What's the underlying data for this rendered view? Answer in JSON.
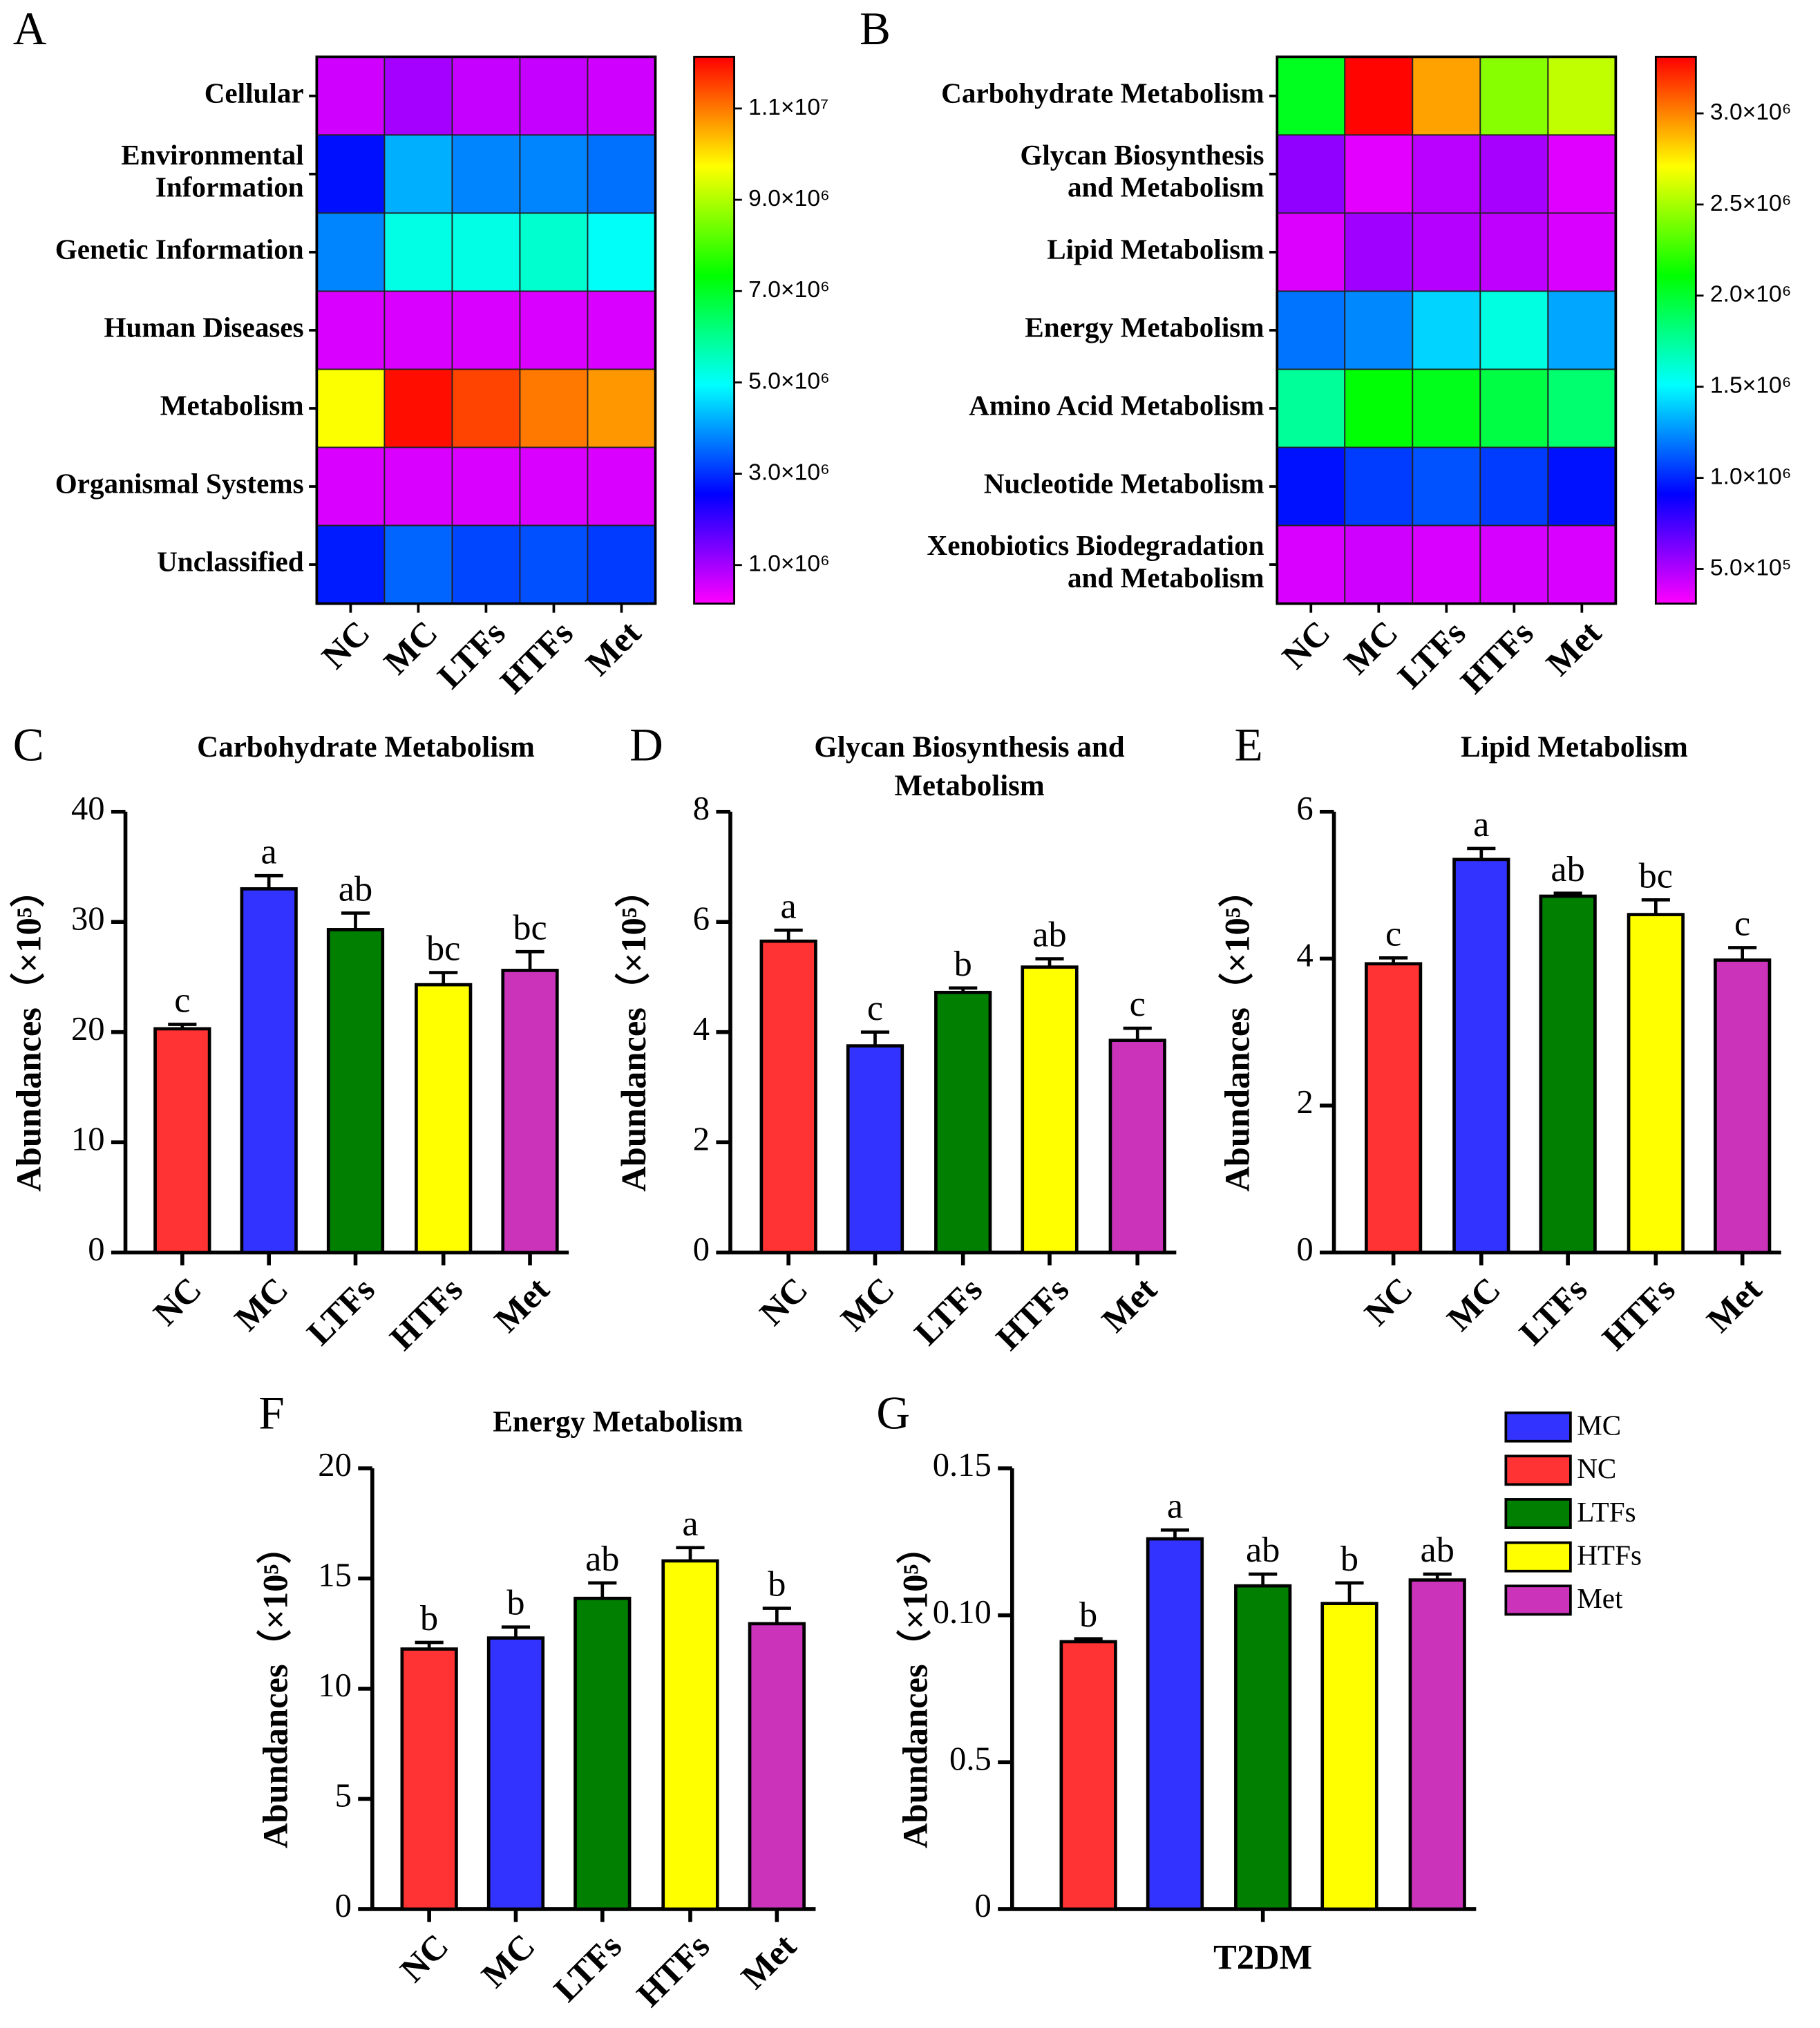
{
  "chart_data": [
    {
      "type": "heatmap",
      "panel": "A",
      "rows": [
        [
          "Cellular"
        ],
        [
          "Environmental",
          "Information"
        ],
        [
          "Genetic Information"
        ],
        [
          "Human Diseases"
        ],
        [
          "Metabolism"
        ],
        [
          "Organismal Systems"
        ],
        [
          "Unclassified"
        ]
      ],
      "columns": [
        "NC",
        "MC",
        "LTFs",
        "HTFs",
        "Met"
      ],
      "values": [
        [
          600000,
          1000000,
          700000,
          700000,
          600000
        ],
        [
          2700000,
          4200000,
          3800000,
          3800000,
          3600000
        ],
        [
          3800000,
          5200000,
          5200000,
          5400000,
          5000000
        ],
        [
          500000,
          500000,
          500000,
          500000,
          500000
        ],
        [
          9700000,
          12000000,
          11500000,
          11000000,
          10700000
        ],
        [
          500000,
          500000,
          500000,
          500000,
          500000
        ],
        [
          2800000,
          3500000,
          3200000,
          3300000,
          3100000
        ]
      ],
      "colormap": [
        "#ff00ff",
        "#0000ff",
        "#00ffff",
        "#00ff00",
        "#ffff00",
        "#ff0000"
      ],
      "zlim": [
        155000,
        12130000
      ],
      "zticks": [
        {
          "value": 1000000,
          "label": "1.0×10⁶"
        },
        {
          "value": 3000000,
          "label": "3.0×10⁶"
        },
        {
          "value": 5000000,
          "label": "5.0×10⁶"
        },
        {
          "value": 7000000,
          "label": "7.0×10⁶"
        },
        {
          "value": 9000000,
          "label": "9.0×10⁶"
        },
        {
          "value": 11000000,
          "label": "1.1×10⁷"
        }
      ]
    },
    {
      "type": "heatmap",
      "panel": "B",
      "rows": [
        [
          "Carbohydrate Metabolism"
        ],
        [
          "Glycan Biosynthesis",
          "and Metabolism"
        ],
        [
          "Lipid Metabolism"
        ],
        [
          "Energy Metabolism"
        ],
        [
          "Amino Acid Metabolism"
        ],
        [
          "Nucleotide Metabolism"
        ],
        [
          "Xenobiotics Biodegradation",
          "and Metabolism"
        ]
      ],
      "columns": [
        "NC",
        "MC",
        "LTFs",
        "HTFs",
        "Met"
      ],
      "values": [
        [
          2040000,
          3300000,
          2930000,
          2430000,
          2560000
        ],
        [
          570000,
          375000,
          472000,
          518000,
          385000
        ],
        [
          393000,
          535000,
          485000,
          460000,
          398000
        ],
        [
          1180000,
          1230000,
          1410000,
          1580000,
          1300000
        ],
        [
          1750000,
          2100000,
          2050000,
          1950000,
          1850000
        ],
        [
          950000,
          1050000,
          1100000,
          1050000,
          950000
        ],
        [
          400000,
          420000,
          400000,
          410000,
          400000
        ]
      ],
      "colormap": [
        "#ff00ff",
        "#0000ff",
        "#00ffff",
        "#00ff00",
        "#ffff00",
        "#ff0000"
      ],
      "zlim": [
        310000,
        3310000
      ],
      "zticks": [
        {
          "value": 500000,
          "label": "5.0×10⁵"
        },
        {
          "value": 1000000,
          "label": "1.0×10⁶"
        },
        {
          "value": 1500000,
          "label": "1.5×10⁶"
        },
        {
          "value": 2000000,
          "label": "2.0×10⁶"
        },
        {
          "value": 2500000,
          "label": "2.5×10⁶"
        },
        {
          "value": 3000000,
          "label": "3.0×10⁶"
        }
      ]
    },
    {
      "type": "bar",
      "panel": "C",
      "title": [
        "Carbohydrate Metabolism"
      ],
      "ylabel": "Abundances（×10⁵）",
      "categories": [
        "NC",
        "MC",
        "LTFs",
        "HTFs",
        "Met"
      ],
      "values": [
        20.3,
        33.0,
        29.3,
        24.3,
        25.6
      ],
      "errors": [
        0.4,
        1.2,
        1.5,
        1.1,
        1.7
      ],
      "annotations": [
        "c",
        "a",
        "ab",
        "bc",
        "bc"
      ],
      "colors": [
        "#ff3333",
        "#3333ff",
        "#007f00",
        "#ffff00",
        "#cc33bb"
      ],
      "ylim": [
        0,
        40
      ],
      "yticks": [
        0,
        10,
        20,
        30,
        40
      ]
    },
    {
      "type": "bar",
      "panel": "D",
      "title": [
        "Glycan Biosynthesis and",
        "Metabolism"
      ],
      "ylabel": "Abundances（×10⁵）",
      "categories": [
        "NC",
        "MC",
        "LTFs",
        "HTFs",
        "Met"
      ],
      "values": [
        5.65,
        3.75,
        4.72,
        5.18,
        3.85
      ],
      "errors": [
        0.2,
        0.25,
        0.08,
        0.15,
        0.22
      ],
      "annotations": [
        "a",
        "c",
        "b",
        "ab",
        "c"
      ],
      "colors": [
        "#ff3333",
        "#3333ff",
        "#007f00",
        "#ffff00",
        "#cc33bb"
      ],
      "ylim": [
        0,
        8
      ],
      "yticks": [
        0,
        2,
        4,
        6,
        8
      ]
    },
    {
      "type": "bar",
      "panel": "E",
      "title": [
        "Lipid Metabolism"
      ],
      "ylabel": "Abundances（×10⁵）",
      "categories": [
        "NC",
        "MC",
        "LTFs",
        "HTFs",
        "Met"
      ],
      "values": [
        3.93,
        5.35,
        4.85,
        4.6,
        3.98
      ],
      "errors": [
        0.08,
        0.15,
        0.04,
        0.2,
        0.17
      ],
      "annotations": [
        "c",
        "a",
        "ab",
        "bc",
        "c"
      ],
      "colors": [
        "#ff3333",
        "#3333ff",
        "#007f00",
        "#ffff00",
        "#cc33bb"
      ],
      "ylim": [
        0,
        6
      ],
      "yticks": [
        0,
        2,
        4,
        6
      ]
    },
    {
      "type": "bar",
      "panel": "F",
      "title": [
        "Energy Metabolism"
      ],
      "ylabel": "Abundances（×10⁵）",
      "categories": [
        "NC",
        "MC",
        "LTFs",
        "HTFs",
        "Met"
      ],
      "values": [
        11.8,
        12.3,
        14.1,
        15.8,
        12.95
      ],
      "errors": [
        0.3,
        0.5,
        0.7,
        0.6,
        0.7
      ],
      "annotations": [
        "b",
        "b",
        "ab",
        "a",
        "b"
      ],
      "colors": [
        "#ff3333",
        "#3333ff",
        "#007f00",
        "#ffff00",
        "#cc33bb"
      ],
      "ylim": [
        0,
        20
      ],
      "yticks": [
        0,
        5,
        10,
        15,
        20
      ]
    },
    {
      "type": "grouped_bar",
      "panel": "G",
      "ylabel": "Abundances（×10⁵）",
      "categories": [
        "T2DM"
      ],
      "series": [
        {
          "name": "NC",
          "color": "#ff3333",
          "values": [
            0.091
          ],
          "errors": [
            0.001
          ],
          "annotations": [
            "b"
          ]
        },
        {
          "name": "MC",
          "color": "#3333ff",
          "values": [
            0.126
          ],
          "errors": [
            0.003
          ],
          "annotations": [
            "a"
          ]
        },
        {
          "name": "LTFs",
          "color": "#007f00",
          "values": [
            0.11
          ],
          "errors": [
            0.004
          ],
          "annotations": [
            "ab"
          ]
        },
        {
          "name": "HTFs",
          "color": "#ffff00",
          "values": [
            0.104
          ],
          "errors": [
            0.007
          ],
          "annotations": [
            "b"
          ]
        },
        {
          "name": "Met",
          "color": "#cc33bb",
          "values": [
            0.112
          ],
          "errors": [
            0.002
          ],
          "annotations": [
            "ab"
          ]
        }
      ],
      "legend": [
        "MC",
        "NC",
        "LTFs",
        "HTFs",
        "Met"
      ],
      "ylim": [
        0,
        0.15
      ],
      "yticks": [
        0,
        {
          "value": 0.05,
          "label": "0.5"
        },
        {
          "value": 0.1,
          "label": "0.10"
        },
        0.15
      ]
    }
  ]
}
